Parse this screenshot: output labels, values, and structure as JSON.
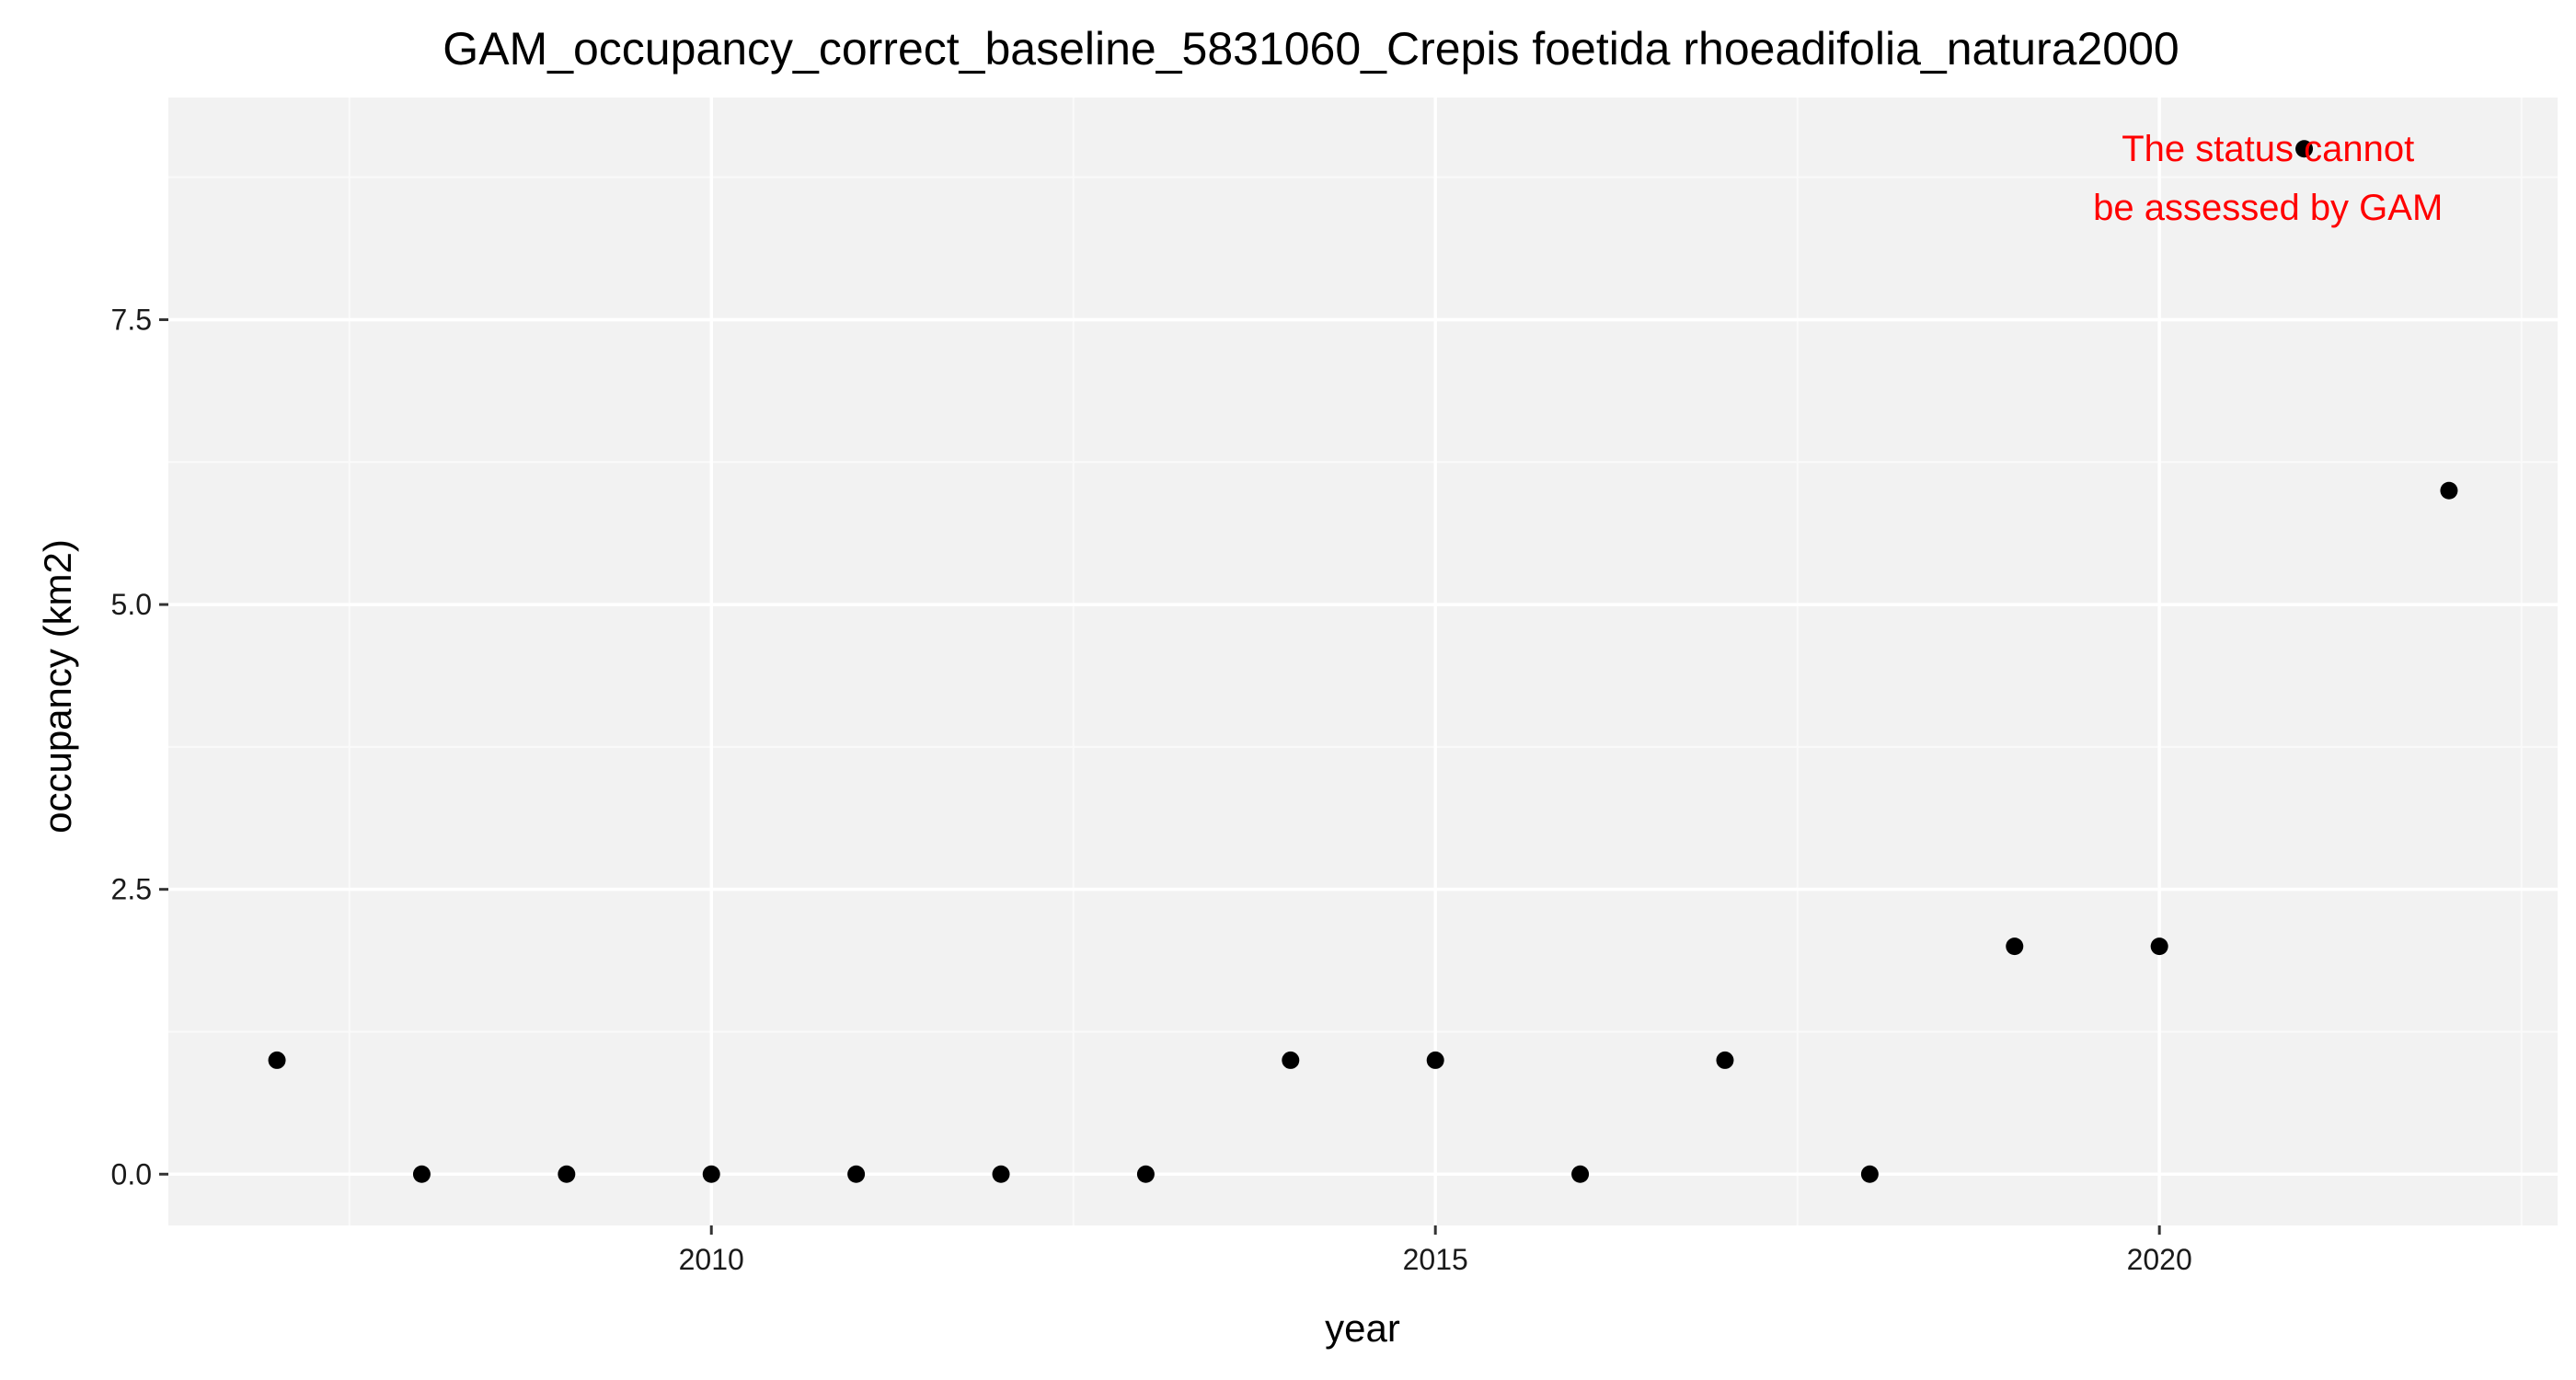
{
  "chart_data": {
    "type": "scatter",
    "title": "GAM_occupancy_correct_baseline_5831060_Crepis foetida rhoeadifolia_natura2000",
    "xlabel": "year",
    "ylabel": "occupancy (km2)",
    "xlim": [
      2006.25,
      2022.75
    ],
    "ylim": [
      -0.45,
      9.45
    ],
    "x_ticks": [
      2010,
      2015,
      2020
    ],
    "x_tick_labels": [
      "2010",
      "2015",
      "2020"
    ],
    "y_ticks": [
      0,
      2.5,
      5,
      7.5
    ],
    "y_tick_labels": [
      "0.0",
      "2.5",
      "5.0",
      "7.5"
    ],
    "grid": true,
    "legend": "none",
    "points": [
      {
        "x": 2007,
        "y": 1
      },
      {
        "x": 2008,
        "y": 0
      },
      {
        "x": 2009,
        "y": 0
      },
      {
        "x": 2010,
        "y": 0
      },
      {
        "x": 2011,
        "y": 0
      },
      {
        "x": 2012,
        "y": 0
      },
      {
        "x": 2013,
        "y": 0
      },
      {
        "x": 2014,
        "y": 1
      },
      {
        "x": 2015,
        "y": 1
      },
      {
        "x": 2016,
        "y": 0
      },
      {
        "x": 2017,
        "y": 1
      },
      {
        "x": 2018,
        "y": 0
      },
      {
        "x": 2019,
        "y": 2
      },
      {
        "x": 2020,
        "y": 2
      },
      {
        "x": 2021,
        "y": 9
      },
      {
        "x": 2022,
        "y": 6
      }
    ],
    "annotation": {
      "lines": [
        "The status cannot",
        "be assessed by GAM"
      ],
      "x": 2020.75,
      "y": 8.65,
      "color": "#FF0000"
    },
    "colors": {
      "panel_background": "#F2F2F2",
      "grid_major": "#FFFFFF",
      "grid_minor": "#FAFAFA",
      "point": "#000000"
    }
  }
}
